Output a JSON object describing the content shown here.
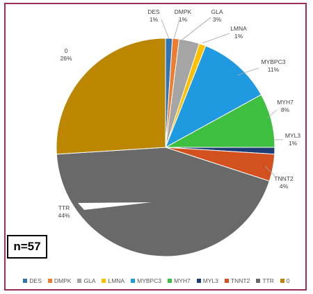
{
  "annotation": {
    "n_label": "n=57"
  },
  "colors": {
    "DES": "#2e75b6",
    "DMPK": "#ed7d31",
    "GLA": "#a5a5a5",
    "LMNA": "#ffc000",
    "MYBPC3": "#1f9ae0",
    "MYH7": "#3fbf3f",
    "MYL3": "#1f3e76",
    "TNNT2": "#d3511f",
    "TTR": "#696969",
    "0": "#bd8600"
  },
  "chart_data": {
    "type": "pie",
    "title": "",
    "slices": [
      {
        "label": "DES",
        "value": 1,
        "display": "1%"
      },
      {
        "label": "DMPK",
        "value": 1,
        "display": "1%"
      },
      {
        "label": "GLA",
        "value": 3,
        "display": "3%"
      },
      {
        "label": "LMNA",
        "value": 1,
        "display": "1%"
      },
      {
        "label": "MYBPC3",
        "value": 11,
        "display": "11%"
      },
      {
        "label": "MYH7",
        "value": 8,
        "display": "8%"
      },
      {
        "label": "MYL3",
        "value": 1,
        "display": "1%"
      },
      {
        "label": "TNNT2",
        "value": 4,
        "display": "4%"
      },
      {
        "label": "TTR",
        "value": 44,
        "display": "44%"
      },
      {
        "label": "0",
        "value": 26,
        "display": "26%"
      }
    ],
    "legend": [
      "DES",
      "DMPK",
      "GLA",
      "LMNA",
      "MYBPC3",
      "MYH7",
      "MYL3",
      "TNNT2",
      "TTR",
      "0"
    ],
    "legend_position": "bottom"
  }
}
